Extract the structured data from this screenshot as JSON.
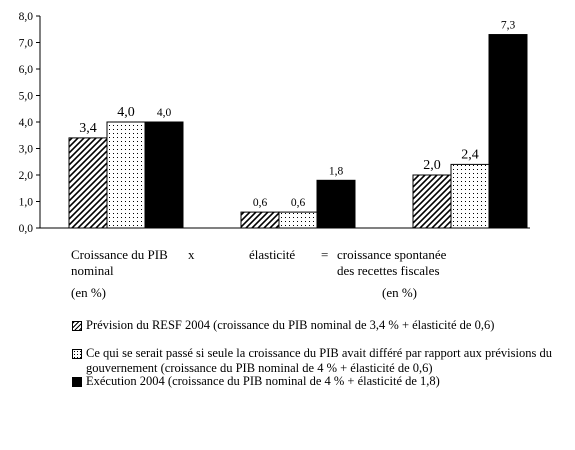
{
  "chart_data": {
    "type": "bar",
    "categories": [
      "Croissance du PIB nominal",
      "élasticité",
      "croissance spontanée des recettes fiscales"
    ],
    "series": [
      {
        "name": "Prévision du RESF 2004 (croissance du PIB nominal de 3,4 % + élasticité de 0,6)",
        "pattern": "hatch",
        "values": [
          3.4,
          0.6,
          2.0
        ],
        "labels": [
          "3,4",
          "0,6",
          "2,0"
        ]
      },
      {
        "name": "Ce qui se serait passé si seule la croissance du PIB avait différé par rapport aux prévisions du gouvernement (croissance du PIB nominal de 4 % + élasticité de 0,6)",
        "pattern": "dots",
        "values": [
          4.0,
          0.6,
          2.4
        ],
        "labels": [
          "4,0",
          "0,6",
          "2,4"
        ]
      },
      {
        "name": "Exécution 2004 (croissance du PIB nominal de 4 % + élasticité de 1,8)",
        "pattern": "solid",
        "values": [
          4.0,
          1.8,
          7.3
        ],
        "labels": [
          "4,0",
          "1,8",
          "7,3"
        ]
      }
    ],
    "ylim": [
      0,
      8
    ],
    "yticks": [
      0,
      1,
      2,
      3,
      4,
      5,
      6,
      7,
      8
    ],
    "ytick_labels": [
      "0,0",
      "1,0",
      "2,0",
      "3,0",
      "4,0",
      "5,0",
      "6,0",
      "7,0",
      "8,0"
    ],
    "grid": false,
    "legend": "bottom",
    "colors": {
      "solid": "#000000",
      "background": "#ffffff"
    }
  },
  "annotations": {
    "cat1_line1": "Croissance du PIB",
    "cat1_line2": "nominal",
    "times": "x",
    "cat2": "élasticité",
    "equals": "=",
    "cat3_line1": "croissance spontanée",
    "cat3_line2": "des recettes fiscales",
    "unit_left": "(en %)",
    "unit_right": "(en %)"
  }
}
